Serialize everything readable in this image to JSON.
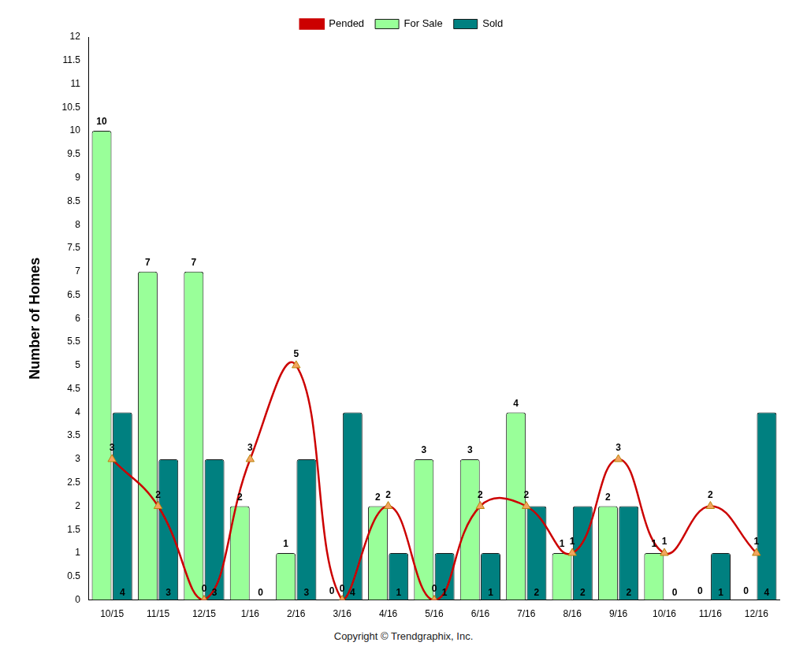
{
  "chart_data": {
    "type": "bar",
    "categories": [
      "10/15",
      "11/15",
      "12/15",
      "1/16",
      "2/16",
      "3/16",
      "4/16",
      "5/16",
      "6/16",
      "7/16",
      "8/16",
      "9/16",
      "10/16",
      "11/16",
      "12/16"
    ],
    "series": [
      {
        "name": "For Sale",
        "type": "bar",
        "color": "#99ff99",
        "values": [
          10,
          7,
          7,
          2,
          1,
          0,
          2,
          3,
          3,
          4,
          1,
          2,
          1,
          0,
          0
        ]
      },
      {
        "name": "Sold",
        "type": "bar",
        "color": "#008080",
        "values": [
          4,
          3,
          3,
          0,
          3,
          4,
          1,
          1,
          1,
          2,
          2,
          2,
          0,
          1,
          4
        ]
      },
      {
        "name": "Pended",
        "type": "line",
        "color": "#cc0000",
        "marker": "triangle",
        "values": [
          3,
          2,
          0,
          3,
          5,
          0,
          2,
          0,
          2,
          2,
          1,
          3,
          1,
          2,
          1
        ]
      }
    ],
    "ylabel": "Number of Homes",
    "ylim": [
      0,
      12
    ],
    "yticks": [
      0,
      0.5,
      1,
      1.5,
      2,
      2.5,
      3,
      3.5,
      4,
      4.5,
      5,
      5.5,
      6,
      6.5,
      7,
      7.5,
      8,
      8.5,
      9,
      9.5,
      10,
      10.5,
      11,
      11.5,
      12
    ],
    "grid": false,
    "legend": "top",
    "data_labels": true,
    "annotations": [
      "Copyright © Trendgraphix, Inc."
    ]
  }
}
